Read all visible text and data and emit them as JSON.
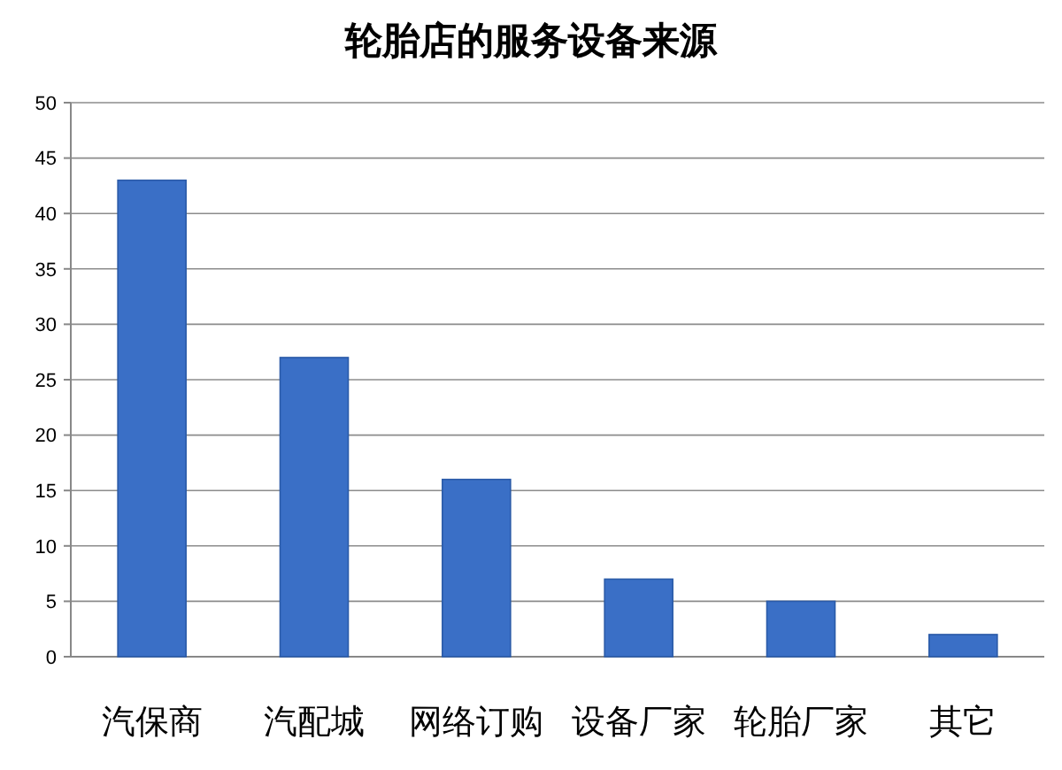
{
  "chart_data": {
    "type": "bar",
    "title": "轮胎店的服务设备来源",
    "categories": [
      "汽保商",
      "汽配城",
      "网络订购",
      "设备厂家",
      "轮胎厂家",
      "其它"
    ],
    "values": [
      43,
      27,
      16,
      7,
      5,
      2
    ],
    "color": "#3a6fc6",
    "ylim": [
      0,
      50
    ],
    "yticks": [
      0,
      5,
      10,
      15,
      20,
      25,
      30,
      35,
      40,
      45,
      50
    ],
    "grid": "y"
  }
}
